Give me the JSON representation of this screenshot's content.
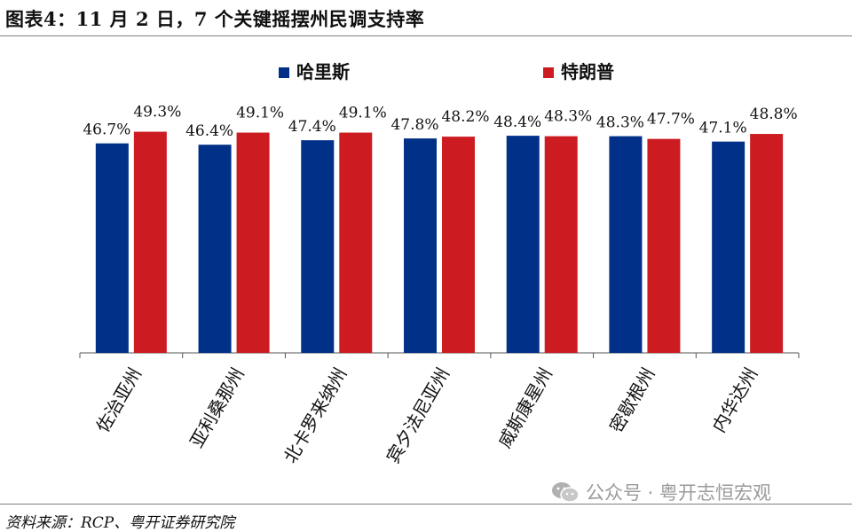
{
  "header": {
    "title": "图表4：11 月 2 日，7 个关键摇摆州民调支持率"
  },
  "footer": {
    "source": "资料来源：RCP、粤开证券研究院",
    "watermark": "公众号 · 粤开志恒宏观",
    "watermark_icon": "wechat-icon"
  },
  "colors": {
    "harris": "#003087",
    "trump": "#cc1c22"
  },
  "chart_data": {
    "type": "bar",
    "title": "",
    "xlabel": "",
    "ylabel": "",
    "ylim": [
      0,
      50
    ],
    "grid": false,
    "legend_position": "top-center",
    "categories": [
      "佐治亚州",
      "亚利桑那州",
      "北卡罗来纳州",
      "宾夕法尼亚州",
      "威斯康星州",
      "密歇根州",
      "内华达州"
    ],
    "series": [
      {
        "name": "哈里斯",
        "color": "#003087",
        "values": [
          46.7,
          46.4,
          47.4,
          47.8,
          48.4,
          48.3,
          47.1
        ],
        "labels": [
          "46.7%",
          "46.4%",
          "47.4%",
          "47.8%",
          "48.4%",
          "48.3%",
          "47.1%"
        ]
      },
      {
        "name": "特朗普",
        "color": "#cc1c22",
        "values": [
          49.3,
          49.1,
          49.1,
          48.2,
          48.3,
          47.7,
          48.8
        ],
        "labels": [
          "49.3%",
          "49.1%",
          "49.1%",
          "48.2%",
          "48.3%",
          "47.7%",
          "48.8%"
        ]
      }
    ]
  }
}
